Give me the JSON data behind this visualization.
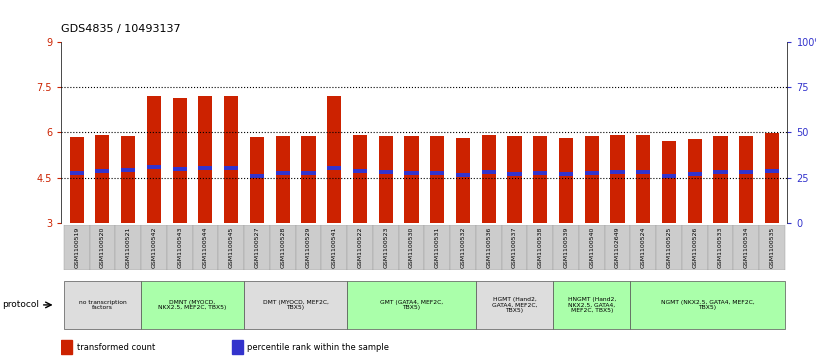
{
  "title": "GDS4835 / 10493137",
  "samples": [
    "GSM1100519",
    "GSM1100520",
    "GSM1100521",
    "GSM1100542",
    "GSM1100543",
    "GSM1100544",
    "GSM1100545",
    "GSM1100527",
    "GSM1100528",
    "GSM1100529",
    "GSM1100541",
    "GSM1100522",
    "GSM1100523",
    "GSM1100530",
    "GSM1100531",
    "GSM1100532",
    "GSM1100536",
    "GSM1100537",
    "GSM1100538",
    "GSM1100539",
    "GSM1100540",
    "GSM1102649",
    "GSM1100524",
    "GSM1100525",
    "GSM1100526",
    "GSM1100533",
    "GSM1100534",
    "GSM1100535"
  ],
  "bar_values": [
    5.85,
    5.92,
    5.88,
    7.2,
    7.15,
    7.2,
    7.2,
    5.85,
    5.87,
    5.88,
    7.2,
    5.92,
    5.9,
    5.88,
    5.88,
    5.82,
    5.92,
    5.87,
    5.88,
    5.82,
    5.87,
    5.92,
    5.92,
    5.72,
    5.8,
    5.88,
    5.88,
    5.98
  ],
  "blue_values": [
    4.65,
    4.72,
    4.75,
    4.85,
    4.8,
    4.83,
    4.83,
    4.57,
    4.65,
    4.67,
    4.83,
    4.73,
    4.7,
    4.65,
    4.67,
    4.6,
    4.68,
    4.62,
    4.65,
    4.62,
    4.65,
    4.68,
    4.7,
    4.55,
    4.62,
    4.68,
    4.7,
    4.72
  ],
  "ymin": 3.0,
  "ymax": 9.0,
  "yticks": [
    3,
    4.5,
    6,
    7.5,
    9
  ],
  "ytick_labels": [
    "3",
    "4.5",
    "6",
    "7.5",
    "9"
  ],
  "right_yticks": [
    0,
    25,
    50,
    75,
    100
  ],
  "right_ytick_labels": [
    "0",
    "25",
    "50",
    "75",
    "100%"
  ],
  "hlines": [
    4.5,
    6.0,
    7.5
  ],
  "bar_color": "#CC2200",
  "blue_color": "#3333CC",
  "bar_width": 0.55,
  "protocols": [
    {
      "label": "no transcription\nfactors",
      "start": 0,
      "end": 3,
      "color": "#dddddd"
    },
    {
      "label": "DMNT (MYOCD,\nNKX2.5, MEF2C, TBX5)",
      "start": 3,
      "end": 7,
      "color": "#aaffaa"
    },
    {
      "label": "DMT (MYOCD, MEF2C,\nTBX5)",
      "start": 7,
      "end": 11,
      "color": "#dddddd"
    },
    {
      "label": "GMT (GATA4, MEF2C,\nTBX5)",
      "start": 11,
      "end": 16,
      "color": "#aaffaa"
    },
    {
      "label": "HGMT (Hand2,\nGATA4, MEF2C,\nTBX5)",
      "start": 16,
      "end": 19,
      "color": "#dddddd"
    },
    {
      "label": "HNGMT (Hand2,\nNKX2.5, GATA4,\nMEF2C, TBX5)",
      "start": 19,
      "end": 22,
      "color": "#aaffaa"
    },
    {
      "label": "NGMT (NKX2.5, GATA4, MEF2C,\nTBX5)",
      "start": 22,
      "end": 28,
      "color": "#aaffaa"
    }
  ],
  "protocol_label": "protocol",
  "legend_items": [
    {
      "label": "transformed count",
      "color": "#CC2200"
    },
    {
      "label": "percentile rank within the sample",
      "color": "#3333CC"
    }
  ],
  "bg_color": "#ffffff",
  "axis_label_color_left": "#CC2200",
  "axis_label_color_right": "#3333CC"
}
